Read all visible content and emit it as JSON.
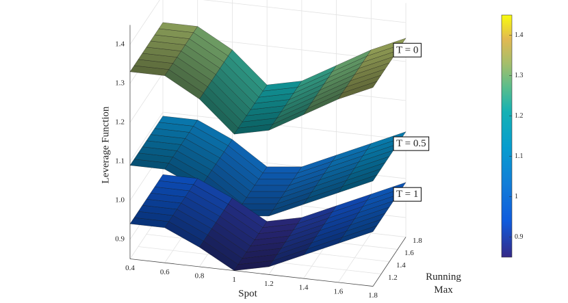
{
  "chart_data": {
    "type": "surface",
    "xlabel": "Spot",
    "ylabel": "Running Max",
    "zlabel": "Leverage Function",
    "x": [
      0.4,
      0.6,
      0.8,
      1.0,
      1.2,
      1.4,
      1.6,
      1.8
    ],
    "series": [
      {
        "name": "T = 0",
        "values": [
          1.33,
          1.33,
          1.28,
          1.2,
          1.22,
          1.27,
          1.32,
          1.36
        ]
      },
      {
        "name": "T = 0.5",
        "values": [
          1.09,
          1.09,
          1.05,
          0.99,
          1.0,
          1.04,
          1.08,
          1.12
        ]
      },
      {
        "name": "T = 1",
        "values": [
          0.94,
          0.94,
          0.9,
          0.85,
          0.87,
          0.91,
          0.95,
          0.99
        ]
      }
    ],
    "xlim": [
      0.4,
      1.8
    ],
    "xticks": [
      0.4,
      0.6,
      0.8,
      1,
      1.2,
      1.4,
      1.6,
      1.8
    ],
    "ylim": [
      1.0,
      1.8
    ],
    "yticks": [
      1.2,
      1.4,
      1.6,
      1.8
    ],
    "zlim": [
      0.85,
      1.45
    ],
    "zticks": [
      0.9,
      {
        "value": 1,
        "label": "1.0"
      },
      1.1,
      1.2,
      1.3,
      1.4
    ],
    "colorbar": {
      "lim": [
        0.85,
        1.45
      ],
      "ticks": [
        0.9,
        1,
        1.1,
        1.2,
        1.3,
        1.4
      ]
    },
    "colormap": "parula",
    "grid": true
  }
}
